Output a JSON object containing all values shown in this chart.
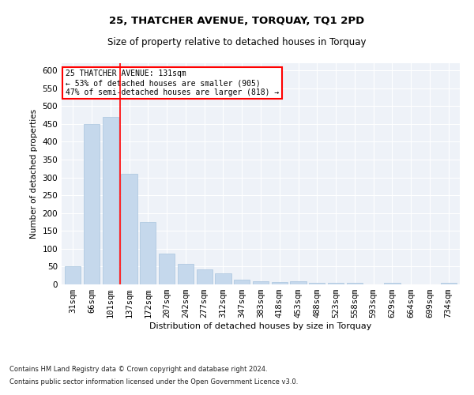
{
  "title1": "25, THATCHER AVENUE, TORQUAY, TQ1 2PD",
  "title2": "Size of property relative to detached houses in Torquay",
  "xlabel": "Distribution of detached houses by size in Torquay",
  "ylabel": "Number of detached properties",
  "categories": [
    "31sqm",
    "66sqm",
    "101sqm",
    "137sqm",
    "172sqm",
    "207sqm",
    "242sqm",
    "277sqm",
    "312sqm",
    "347sqm",
    "383sqm",
    "418sqm",
    "453sqm",
    "488sqm",
    "523sqm",
    "558sqm",
    "593sqm",
    "629sqm",
    "664sqm",
    "699sqm",
    "734sqm"
  ],
  "values": [
    52,
    450,
    470,
    310,
    175,
    87,
    58,
    43,
    30,
    14,
    9,
    6,
    8,
    5,
    5,
    5,
    1,
    4,
    0,
    0,
    4
  ],
  "bar_color": "#c5d8ec",
  "bar_edgecolor": "#a8c4dd",
  "vline_x": 2.5,
  "vline_color": "red",
  "annotation_title": "25 THATCHER AVENUE: 131sqm",
  "annotation_line1": "← 53% of detached houses are smaller (905)",
  "annotation_line2": "47% of semi-detached houses are larger (818) →",
  "annotation_box_color": "red",
  "bg_color": "#eef2f8",
  "ylim": [
    0,
    620
  ],
  "yticks": [
    0,
    50,
    100,
    150,
    200,
    250,
    300,
    350,
    400,
    450,
    500,
    550,
    600
  ],
  "footnote1": "Contains HM Land Registry data © Crown copyright and database right 2024.",
  "footnote2": "Contains public sector information licensed under the Open Government Licence v3.0."
}
